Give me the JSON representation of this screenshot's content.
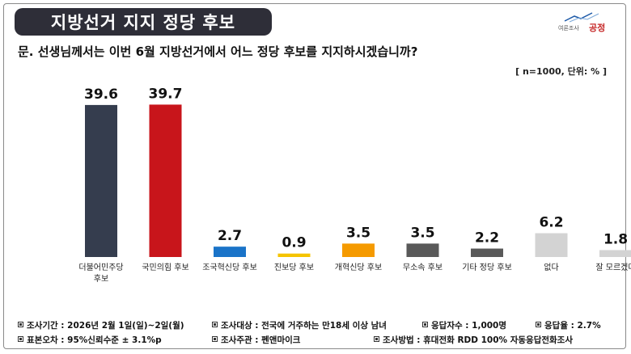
{
  "header": {
    "title": "지방선거 지지 정당 후보",
    "logo_sub": "여론조사",
    "logo_main": "공정"
  },
  "question": "문. 선생님께서는 이번 6월 지방선거에서 어느 정당 후보를 지지하시겠습니까?",
  "sample_note": "[ n=1000, 단위: % ]",
  "chart_data": {
    "type": "bar",
    "categories": [
      [
        "더불어민주당",
        "후보"
      ],
      [
        "국민의힘 후보"
      ],
      [
        "조국혁신당 후보"
      ],
      [
        "진보당 후보"
      ],
      [
        "개혁신당 후보"
      ],
      [
        "무소속 후보"
      ],
      [
        "기타 정당 후보"
      ],
      [
        "없다"
      ],
      [
        "잘 모르겠다"
      ]
    ],
    "values": [
      39.6,
      39.7,
      2.7,
      0.9,
      3.5,
      3.5,
      2.2,
      6.2,
      1.8
    ],
    "value_labels": [
      "39.6",
      "39.7",
      "2.7",
      "0.9",
      "3.5",
      "3.5",
      "2.2",
      "6.2",
      "1.8"
    ],
    "colors": [
      "#353d4e",
      "#c8151b",
      "#1a73c8",
      "#f5c400",
      "#f59a00",
      "#595959",
      "#595959",
      "#d3d3d3",
      "#d3d3d3"
    ],
    "ylim": [
      0,
      40
    ],
    "grid": false,
    "legend": "none"
  },
  "footer": [
    [
      "조사기간 : 2026년 2월 1일(일)~2일(월)",
      "조사대상 : 전국에 거주하는 만18세 이상 남녀",
      "응답자수 : 1,000명",
      "응답율 : 2.7%"
    ],
    [
      "표본오차 : 95%신뢰수준 ± 3.1%p",
      "조사주관 : 펜앤마이크",
      "조사방법 : 휴대전화 RDD 100% 자동응답전화조사"
    ]
  ]
}
